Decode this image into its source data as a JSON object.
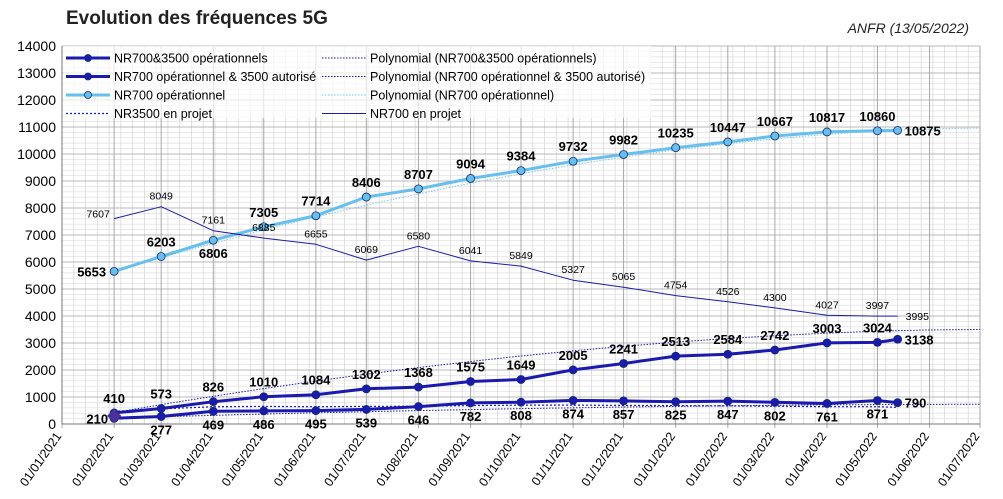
{
  "title": "Evolution des fréquences 5G",
  "source": "ANFR (13/05/2022)",
  "chart_data": {
    "type": "line",
    "title": "Evolution des fréquences 5G",
    "ylim": [
      0,
      14000
    ],
    "yticks": [
      0,
      1000,
      2000,
      3000,
      4000,
      5000,
      6000,
      7000,
      8000,
      9000,
      10000,
      11000,
      12000,
      13000,
      14000
    ],
    "x_dates": [
      "01/01/2021",
      "01/02/2021",
      "01/03/2021",
      "01/04/2021",
      "01/05/2021",
      "01/06/2021",
      "01/07/2021",
      "01/08/2021",
      "01/09/2021",
      "01/10/2021",
      "01/11/2021",
      "01/12/2021",
      "01/01/2022",
      "01/02/2022",
      "01/03/2022",
      "01/04/2022",
      "01/05/2022",
      "01/06/2022",
      "01/07/2022"
    ],
    "grid": true,
    "legend_position": "top-left",
    "legend": [
      "NR700&3500 opérationnels",
      "NR700 opérationnel & 3500 autorisé",
      "NR700 opérationnel",
      "NR3500 en projet",
      "Polynomial (NR700&3500 opérationnels)",
      "Polynomial (NR700 opérationnel & 3500 autorisé)",
      "Polynomial (NR700 opérationnel)",
      "NR700 en projet"
    ],
    "series": [
      {
        "name": "NR700 opérationnel",
        "color": "#66bfee",
        "x": [
          "01/02/2021",
          "01/03/2021",
          "01/04/2021",
          "01/05/2021",
          "01/06/2021",
          "01/07/2021",
          "01/08/2021",
          "01/09/2021",
          "01/10/2021",
          "01/11/2021",
          "01/12/2021",
          "01/01/2022",
          "01/02/2022",
          "01/03/2022",
          "01/04/2022",
          "01/05/2022",
          "13/05/2022"
        ],
        "values": [
          5653,
          6203,
          6806,
          7305,
          7714,
          8406,
          8707,
          9094,
          9384,
          9732,
          9982,
          10235,
          10447,
          10667,
          10817,
          10860,
          10875
        ]
      },
      {
        "name": "NR700 opérationnel & 3500 autorisé",
        "color": "#1a1ab0",
        "x": [
          "01/02/2021",
          "01/03/2021",
          "01/04/2021",
          "01/05/2021",
          "01/06/2021",
          "01/07/2021",
          "01/08/2021",
          "01/09/2021",
          "01/10/2021",
          "01/11/2021",
          "01/12/2021",
          "01/01/2022",
          "01/02/2022",
          "01/03/2022",
          "01/04/2022",
          "01/05/2022",
          "13/05/2022"
        ],
        "values": [
          410,
          573,
          826,
          1010,
          1084,
          1302,
          1368,
          1575,
          1649,
          2005,
          2241,
          2513,
          2584,
          2742,
          3003,
          3024,
          3138
        ]
      },
      {
        "name": "NR700&3500 opérationnels",
        "color": "#1a1ab0",
        "x": [
          "01/02/2021",
          "01/03/2021",
          "01/04/2021",
          "01/05/2021",
          "01/06/2021",
          "01/07/2021",
          "01/08/2021",
          "01/09/2021",
          "01/10/2021",
          "01/11/2021",
          "01/12/2021",
          "01/01/2022",
          "01/02/2022",
          "01/03/2022",
          "01/04/2022",
          "01/05/2022",
          "13/05/2022"
        ],
        "values": [
          210,
          277,
          469,
          486,
          495,
          539,
          646,
          782,
          808,
          874,
          857,
          825,
          847,
          802,
          761,
          871,
          790
        ]
      },
      {
        "name": "NR700 en projet",
        "color": "#1a1ab0",
        "x": [
          "01/02/2021",
          "01/03/2021",
          "01/04/2021",
          "01/05/2021",
          "01/06/2021",
          "01/07/2021",
          "01/08/2021",
          "01/09/2021",
          "01/10/2021",
          "01/11/2021",
          "01/12/2021",
          "01/01/2022",
          "01/02/2022",
          "01/03/2022",
          "01/04/2022",
          "01/05/2022",
          "13/05/2022"
        ],
        "values": [
          7607,
          8049,
          7161,
          6885,
          6655,
          6069,
          6580,
          6041,
          5849,
          5327,
          5065,
          4754,
          4526,
          4300,
          4027,
          3997,
          3995
        ]
      },
      {
        "name": "NR3500 en projet",
        "color": "#1a1ab0",
        "x": [
          "01/02/2021",
          "01/03/2021",
          "01/04/2021",
          "01/05/2021",
          "01/06/2021",
          "01/07/2021",
          "01/08/2021",
          "01/09/2021",
          "01/10/2021",
          "01/11/2021",
          "01/12/2021",
          "01/01/2022",
          "01/02/2022",
          "01/03/2022",
          "01/04/2022",
          "01/05/2022",
          "13/05/2022"
        ],
        "values": [
          470,
          560,
          640,
          650,
          640,
          650,
          660,
          680,
          700,
          700,
          690,
          680,
          670,
          660,
          640,
          640,
          620
        ]
      }
    ],
    "trendlines": [
      {
        "name": "Polynomial (NR700 opérationnel)",
        "color": "#7fc6ee",
        "x": [
          "01/02/2021",
          "01/07/2022"
        ],
        "values": [
          5650,
          10960
        ]
      },
      {
        "name": "Polynomial (NR700 opérationnel & 3500 autorisé)",
        "color": "#1a1ab0",
        "x": [
          "01/02/2021",
          "01/07/2022"
        ],
        "values": [
          420,
          3500
        ]
      },
      {
        "name": "Polynomial (NR700&3500 opérationnels)",
        "color": "#1a1ab0",
        "x": [
          "01/02/2021",
          "01/07/2022"
        ],
        "values": [
          220,
          730
        ]
      }
    ]
  }
}
